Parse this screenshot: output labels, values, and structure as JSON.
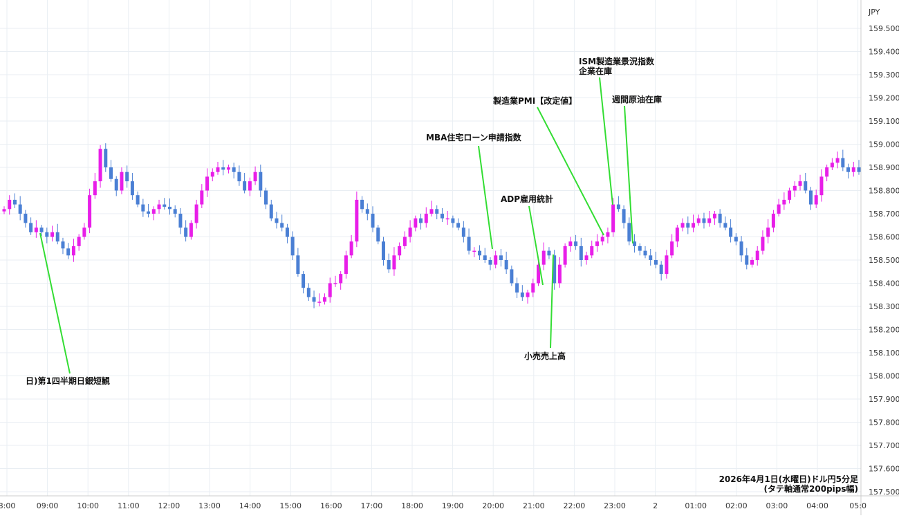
{
  "chart_data": {
    "type": "candlestick",
    "currency": "JPY",
    "ylim": [
      157.5,
      159.55
    ],
    "y_ticks": [
      "159.500",
      "159.400",
      "159.300",
      "159.200",
      "159.100",
      "159.000",
      "158.900",
      "158.800",
      "158.700",
      "158.600",
      "158.500",
      "158.400",
      "158.300",
      "158.200",
      "158.100",
      "158.000",
      "157.900",
      "157.800",
      "157.700",
      "157.600",
      "157.500"
    ],
    "x_ticks": [
      "8:00",
      "09:00",
      "10:00",
      "11:00",
      "12:00",
      "13:00",
      "14:00",
      "15:00",
      "16:00",
      "17:00",
      "18:00",
      "19:00",
      "20:00",
      "21:00",
      "22:00",
      "23:00",
      "2",
      "01:00",
      "02:00",
      "03:00",
      "04:00",
      "05:0"
    ],
    "grid": true,
    "up_color": "#e81ee8",
    "down_color": "#4a7fd4",
    "annotation_color": "#33dd33",
    "footer_line1": "2026年4月1日(水曜日)ドル円5分足",
    "footer_line2": "(タテ軸通常200pips幅)",
    "events": [
      {
        "label": "日)第1四半期日銀短観"
      },
      {
        "label": "MBA住宅ローン申請指数"
      },
      {
        "label": "ADP雇用統計"
      },
      {
        "label": "小売売上高"
      },
      {
        "label": "製造業PMI【改定値】"
      },
      {
        "label": "ISM製造業景況指数"
      },
      {
        "label": "企業在庫"
      },
      {
        "label": "週間原油在庫"
      }
    ],
    "close_path": [
      158.72,
      158.76,
      158.74,
      158.7,
      158.66,
      158.62,
      158.64,
      158.62,
      158.6,
      158.62,
      158.58,
      158.55,
      158.52,
      158.56,
      158.6,
      158.64,
      158.78,
      158.84,
      158.98,
      158.9,
      158.85,
      158.8,
      158.88,
      158.84,
      158.78,
      158.74,
      158.71,
      158.7,
      158.72,
      158.74,
      158.73,
      158.72,
      158.7,
      158.64,
      158.6,
      158.66,
      158.74,
      158.8,
      158.86,
      158.88,
      158.9,
      158.89,
      158.9,
      158.88,
      158.84,
      158.8,
      158.84,
      158.88,
      158.8,
      158.74,
      158.68,
      158.66,
      158.64,
      158.6,
      158.52,
      158.44,
      158.38,
      158.34,
      158.32,
      158.32,
      158.34,
      158.4,
      158.4,
      158.44,
      158.52,
      158.58,
      158.76,
      158.72,
      158.7,
      158.64,
      158.58,
      158.5,
      158.46,
      158.52,
      158.56,
      158.6,
      158.64,
      158.68,
      158.66,
      158.7,
      158.72,
      158.7,
      158.68,
      158.68,
      158.66,
      158.64,
      158.6,
      158.54,
      158.54,
      158.52,
      158.5,
      158.48,
      158.52,
      158.5,
      158.46,
      158.4,
      158.36,
      158.34,
      158.36,
      158.4,
      158.48,
      158.54,
      158.52,
      158.4,
      158.48,
      158.56,
      158.58,
      158.56,
      158.5,
      158.52,
      158.56,
      158.58,
      158.6,
      158.62,
      158.74,
      158.72,
      158.66,
      158.58,
      158.56,
      158.54,
      158.52,
      158.5,
      158.48,
      158.44,
      158.52,
      158.58,
      158.64,
      158.66,
      158.64,
      158.66,
      158.68,
      158.66,
      158.68,
      158.7,
      158.66,
      158.64,
      158.6,
      158.58,
      158.52,
      158.48,
      158.5,
      158.54,
      158.6,
      158.64,
      158.7,
      158.74,
      158.76,
      158.8,
      158.82,
      158.84,
      158.8,
      158.74,
      158.78,
      158.86,
      158.9,
      158.92,
      158.94,
      158.9,
      158.88,
      158.9,
      158.88
    ]
  }
}
